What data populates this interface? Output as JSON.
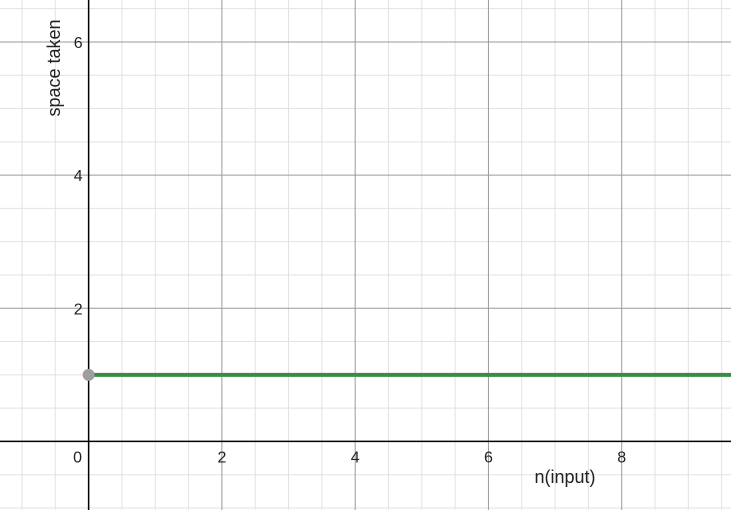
{
  "chart_data": {
    "type": "line",
    "xlabel": "n(input)",
    "ylabel": "space taken",
    "xlim": [
      -1.33,
      9.64
    ],
    "ylim": [
      -1.03,
      6.63
    ],
    "x_ticks": [
      "0",
      "2",
      "4",
      "6",
      "8"
    ],
    "y_ticks": [
      "2",
      "4",
      "6"
    ],
    "grid": true,
    "series": [
      {
        "x": [
          0,
          9.64
        ],
        "y": [
          1,
          1
        ],
        "color": "#388c46"
      }
    ],
    "start_point": {
      "x": 0,
      "y": 1,
      "color": "#9e9e9e"
    }
  }
}
